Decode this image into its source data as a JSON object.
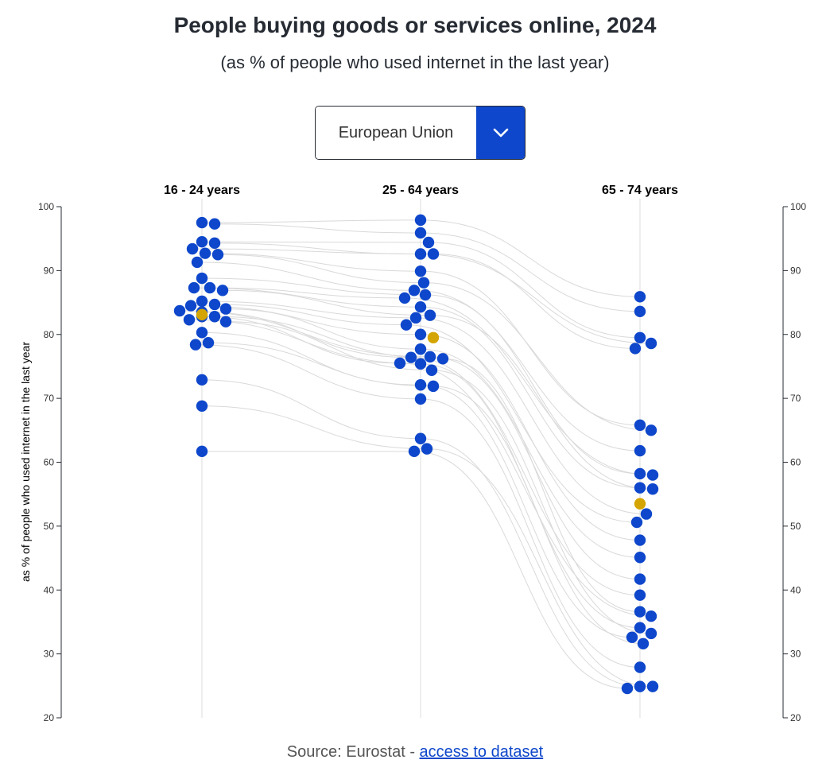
{
  "title": "People buying goods or services online, 2024",
  "subtitle": "(as % of people who used internet in the last year)",
  "dropdown": {
    "selected": "European Union",
    "icon": "chevron-down-icon"
  },
  "source": {
    "prefix": "Source: Eurostat - ",
    "link": "access to dataset"
  },
  "colors": {
    "country": "#0e47cb",
    "highlight": "#d4a500",
    "line": "#d9d9d9",
    "axis": "#262b33"
  },
  "chart_data": {
    "type": "scatter",
    "subtype": "beeswarm-slope",
    "ylabel": "as % of people who used internet in the last year",
    "ylim": [
      20,
      100
    ],
    "yticks": [
      20,
      30,
      40,
      50,
      60,
      70,
      80,
      90,
      100
    ],
    "categories": [
      "16 - 24 years",
      "25 - 64 years",
      "65 - 74 years"
    ],
    "highlight": {
      "name": "European Union",
      "values": [
        83.1,
        79.5,
        53.5
      ]
    },
    "series": [
      {
        "category": "16 - 24 years",
        "values": [
          97.5,
          97.3,
          94.5,
          94.3,
          93.4,
          92.7,
          92.5,
          91.3,
          88.8,
          87.3,
          87.3,
          86.9,
          85.2,
          84.7,
          84.5,
          84.0,
          83.7,
          83.5,
          82.8,
          82.8,
          82.3,
          82.0,
          80.3,
          78.7,
          78.4,
          72.9,
          68.8,
          61.7
        ]
      },
      {
        "category": "25 - 64 years",
        "values": [
          97.9,
          95.9,
          94.4,
          92.6,
          92.6,
          89.9,
          88.1,
          86.9,
          86.2,
          85.7,
          84.3,
          83.0,
          82.6,
          81.5,
          80.0,
          77.7,
          76.5,
          76.4,
          76.2,
          75.5,
          75.4,
          74.4,
          72.1,
          71.9,
          69.9,
          63.7,
          62.1,
          61.7
        ]
      },
      {
        "category": "65 - 74 years",
        "values": [
          85.9,
          83.6,
          79.5,
          78.6,
          77.8,
          65.8,
          65.0,
          61.8,
          58.2,
          58.0,
          56.0,
          55.8,
          51.9,
          50.6,
          47.8,
          45.1,
          41.7,
          39.2,
          36.6,
          35.9,
          34.1,
          33.2,
          32.6,
          31.6,
          27.9,
          24.9,
          24.9,
          24.6
        ]
      }
    ]
  }
}
